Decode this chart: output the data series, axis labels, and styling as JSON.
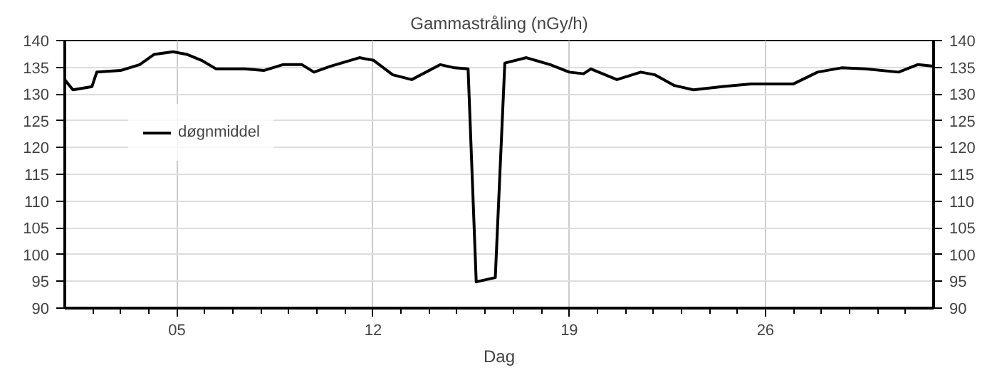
{
  "chart_data": {
    "type": "line",
    "title": "Gammastråling (nGy/h)",
    "xlabel": "Dag",
    "x": [
      1.0,
      1.12,
      1.29,
      1.97,
      2.14,
      2.99,
      3.67,
      4.18,
      4.86,
      5.37,
      5.88,
      6.4,
      7.42,
      8.1,
      8.78,
      9.46,
      9.89,
      10.48,
      11.51,
      12.02,
      12.7,
      13.38,
      14.4,
      14.91,
      15.39,
      15.68,
      16.36,
      16.7,
      17.47,
      18.32,
      19.0,
      19.51,
      19.77,
      20.7,
      21.55,
      22.06,
      22.75,
      23.43,
      24.45,
      25.48,
      27.0,
      27.86,
      28.71,
      29.56,
      30.75,
      31.43,
      32.0
    ],
    "series": [
      {
        "name": "døgnmiddel",
        "color": "#000000",
        "values": [
          132.7,
          131.9,
          130.8,
          131.4,
          134.1,
          134.4,
          135.5,
          137.4,
          137.9,
          137.4,
          136.3,
          134.7,
          134.7,
          134.4,
          135.5,
          135.5,
          134.1,
          135.2,
          136.8,
          136.3,
          133.6,
          132.7,
          135.5,
          134.9,
          134.7,
          94.9,
          95.7,
          135.8,
          136.8,
          135.5,
          134.1,
          133.8,
          134.7,
          132.7,
          134.1,
          133.6,
          131.6,
          130.8,
          131.4,
          131.9,
          131.9,
          134.1,
          134.9,
          134.7,
          134.1,
          135.5,
          135.2
        ]
      }
    ],
    "xlim": [
      1,
      32
    ],
    "xticks": [
      {
        "value": 2,
        "label": null
      },
      {
        "value": 3,
        "label": null
      },
      {
        "value": 4,
        "label": null
      },
      {
        "value": 5,
        "label": "05"
      },
      {
        "value": 6,
        "label": null
      },
      {
        "value": 7,
        "label": null
      },
      {
        "value": 8,
        "label": null
      },
      {
        "value": 9,
        "label": null
      },
      {
        "value": 10,
        "label": null
      },
      {
        "value": 11,
        "label": null
      },
      {
        "value": 12,
        "label": "12"
      },
      {
        "value": 13,
        "label": null
      },
      {
        "value": 14,
        "label": null
      },
      {
        "value": 15,
        "label": null
      },
      {
        "value": 16,
        "label": null
      },
      {
        "value": 17,
        "label": null
      },
      {
        "value": 18,
        "label": null
      },
      {
        "value": 19,
        "label": "19"
      },
      {
        "value": 20,
        "label": null
      },
      {
        "value": 21,
        "label": null
      },
      {
        "value": 22,
        "label": null
      },
      {
        "value": 23,
        "label": null
      },
      {
        "value": 24,
        "label": null
      },
      {
        "value": 25,
        "label": null
      },
      {
        "value": 26,
        "label": "26"
      },
      {
        "value": 27,
        "label": null
      },
      {
        "value": 28,
        "label": null
      },
      {
        "value": 29,
        "label": null
      },
      {
        "value": 30,
        "label": null
      },
      {
        "value": 31,
        "label": null
      }
    ],
    "ylim": [
      90,
      140
    ],
    "yticks": [
      90,
      95,
      100,
      105,
      110,
      115,
      120,
      125,
      130,
      135,
      140
    ],
    "y2lim": [
      90,
      140
    ],
    "y2ticks": [
      90,
      95,
      100,
      105,
      110,
      115,
      120,
      125,
      130,
      135,
      140
    ],
    "grid": true,
    "legend": "top left",
    "line_style": "solid",
    "marker": "none"
  }
}
